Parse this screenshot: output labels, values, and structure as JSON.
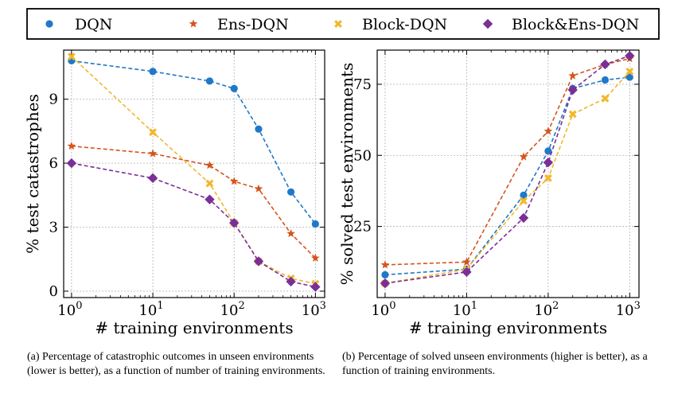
{
  "chart_data": [
    {
      "type": "line",
      "xlabel": "# training environments",
      "ylabel": "% test catastrophes",
      "x_scale": "log",
      "x_ticks": [
        1,
        10,
        100,
        1000
      ],
      "x_tick_labels": [
        {
          "base": "10",
          "exp": "0"
        },
        {
          "base": "10",
          "exp": "1"
        },
        {
          "base": "10",
          "exp": "2"
        },
        {
          "base": "10",
          "exp": "3"
        }
      ],
      "xlim": [
        0.8,
        1300
      ],
      "ylim": [
        -0.3,
        11.3
      ],
      "y_ticks": [
        0,
        3,
        6,
        9
      ],
      "y_tick_labels": [
        "0",
        "3",
        "6",
        "9"
      ],
      "grid": true,
      "x": [
        1,
        10,
        50,
        100,
        200,
        500,
        1000
      ],
      "series": [
        {
          "name": "DQN",
          "values": [
            10.8,
            10.3,
            9.85,
            9.5,
            7.6,
            4.65,
            3.15
          ]
        },
        {
          "name": "Ens-DQN",
          "values": [
            6.8,
            6.45,
            5.9,
            5.15,
            4.8,
            2.7,
            1.55
          ]
        },
        {
          "name": "Block-DQN",
          "values": [
            11.0,
            7.45,
            5.05,
            3.2,
            1.4,
            0.6,
            0.35
          ]
        },
        {
          "name": "Block&Ens-DQN",
          "values": [
            6.0,
            5.3,
            4.3,
            3.2,
            1.4,
            0.45,
            0.2
          ]
        }
      ]
    },
    {
      "type": "line",
      "xlabel": "# training environments",
      "ylabel": "% solved test environments",
      "x_scale": "log",
      "x_ticks": [
        1,
        10,
        100,
        1000
      ],
      "x_tick_labels": [
        {
          "base": "10",
          "exp": "0"
        },
        {
          "base": "10",
          "exp": "1"
        },
        {
          "base": "10",
          "exp": "2"
        },
        {
          "base": "10",
          "exp": "3"
        }
      ],
      "xlim": [
        0.8,
        1300
      ],
      "ylim": [
        0,
        87
      ],
      "y_ticks": [
        25,
        50,
        75
      ],
      "y_tick_labels": [
        "25",
        "50",
        "75"
      ],
      "grid": true,
      "x": [
        1,
        10,
        50,
        100,
        200,
        500,
        1000
      ],
      "series": [
        {
          "name": "DQN",
          "values": [
            8,
            10,
            36,
            51.5,
            73.5,
            76.5,
            77.5
          ]
        },
        {
          "name": "Ens-DQN",
          "values": [
            11.5,
            12.5,
            49.5,
            58.5,
            78,
            82,
            84
          ]
        },
        {
          "name": "Block-DQN",
          "values": [
            5,
            10,
            34,
            42,
            64.5,
            70,
            79.5
          ]
        },
        {
          "name": "Block&Ens-DQN",
          "values": [
            5,
            9,
            28,
            47.5,
            73,
            82,
            85
          ]
        }
      ]
    }
  ],
  "legend": {
    "placement": "top",
    "entries": [
      "DQN",
      "Ens-DQN",
      "Block-DQN",
      "Block&Ens-DQN"
    ]
  },
  "colors": {
    "DQN": "#1f78c8",
    "Ens-DQN": "#d4541c",
    "Block-DQN": "#f0b82c",
    "Block&Ens-DQN": "#7a2f96"
  },
  "markers": {
    "DQN": "circle",
    "Ens-DQN": "star",
    "Block-DQN": "x-filled",
    "Block&Ens-DQN": "diamond"
  },
  "captions": {
    "a": "(a) Percentage of catastrophic outcomes in unseen environments (lower is better), as a function of number of training environments.",
    "b": "(b) Percentage of solved unseen environments (higher is better), as a function of training environments."
  }
}
